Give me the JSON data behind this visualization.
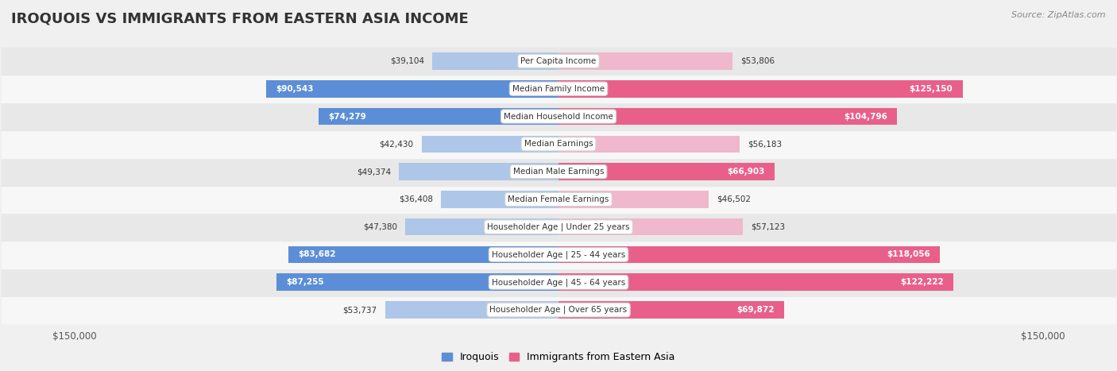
{
  "title": "IROQUOIS VS IMMIGRANTS FROM EASTERN ASIA INCOME",
  "source": "Source: ZipAtlas.com",
  "categories": [
    "Per Capita Income",
    "Median Family Income",
    "Median Household Income",
    "Median Earnings",
    "Median Male Earnings",
    "Median Female Earnings",
    "Householder Age | Under 25 years",
    "Householder Age | 25 - 44 years",
    "Householder Age | 45 - 64 years",
    "Householder Age | Over 65 years"
  ],
  "iroquois_values": [
    39104,
    90543,
    74279,
    42430,
    49374,
    36408,
    47380,
    83682,
    87255,
    53737
  ],
  "eastern_asia_values": [
    53806,
    125150,
    104796,
    56183,
    66903,
    46502,
    57123,
    118056,
    122222,
    69872
  ],
  "iroquois_labels": [
    "$39,104",
    "$90,543",
    "$74,279",
    "$42,430",
    "$49,374",
    "$36,408",
    "$47,380",
    "$83,682",
    "$87,255",
    "$53,737"
  ],
  "eastern_asia_labels": [
    "$53,806",
    "$125,150",
    "$104,796",
    "$56,183",
    "$66,903",
    "$46,502",
    "$57,123",
    "$118,056",
    "$122,222",
    "$69,872"
  ],
  "iroquois_color_light": "#aec6e8",
  "iroquois_color_dark": "#5b8ed6",
  "eastern_asia_color_light": "#f0b8cc",
  "eastern_asia_color_dark": "#e8608a",
  "max_value": 150000,
  "legend_iroquois": "Iroquois",
  "legend_eastern_asia": "Immigrants from Eastern Asia",
  "bg_color": "#f0f0f0",
  "row_bg_even": "#f7f7f7",
  "row_bg_odd": "#e8e8e8",
  "label_fontsize": 7.5,
  "cat_fontsize": 7.5,
  "title_fontsize": 13,
  "source_fontsize": 8,
  "title_color": "#333333",
  "source_color": "#888888",
  "dark_label_threshold": 60000
}
